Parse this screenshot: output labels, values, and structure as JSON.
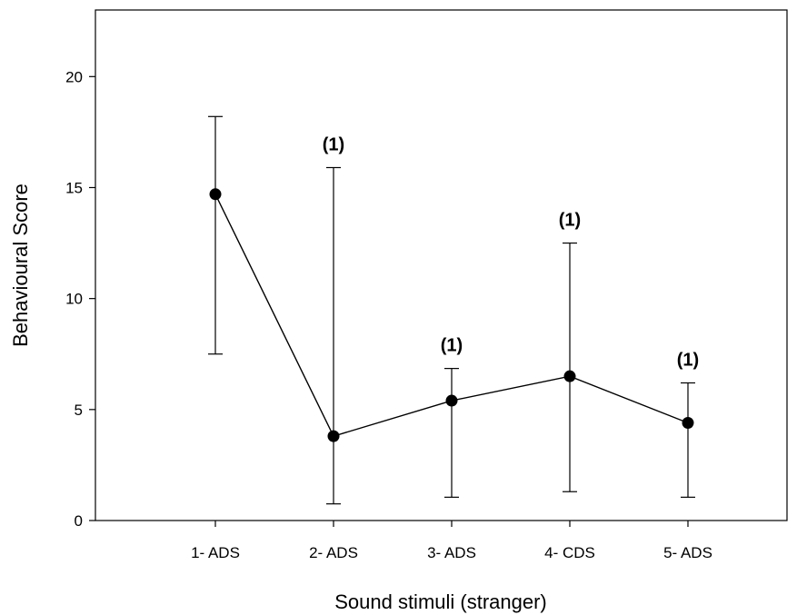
{
  "chart_data": {
    "type": "line",
    "xlabel": "Sound stimuli (stranger)",
    "ylabel": "Behavioural Score",
    "ylim": [
      0,
      23
    ],
    "yticks": [
      0,
      5,
      10,
      15,
      20
    ],
    "categories": [
      "1- ADS",
      "2- ADS",
      "3- ADS",
      "4- CDS",
      "5- ADS"
    ],
    "series": [
      {
        "values": [
          14.7,
          3.8,
          5.4,
          6.5,
          4.4
        ],
        "err_low": [
          7.5,
          0.75,
          1.05,
          1.3,
          1.05
        ],
        "err_high": [
          18.2,
          15.9,
          6.85,
          12.5,
          6.2
        ]
      }
    ],
    "annotations": [
      "",
      "(1)",
      "(1)",
      "(1)",
      "(1)"
    ],
    "grid": false,
    "colors": {
      "line": "#000000",
      "marker": "#000000"
    }
  }
}
